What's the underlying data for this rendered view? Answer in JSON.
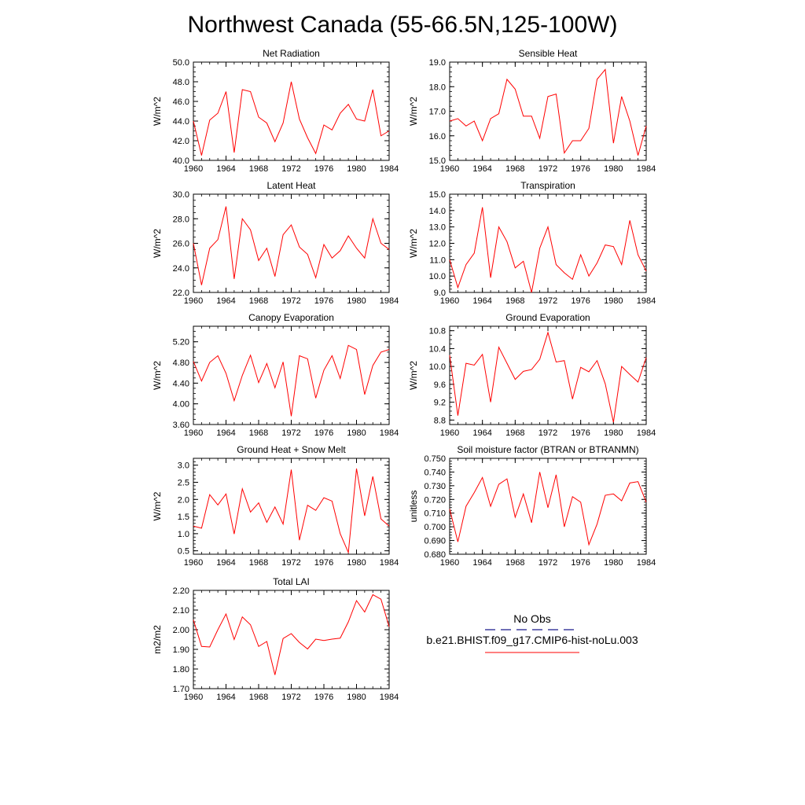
{
  "figure": {
    "title": "Northwest Canada (55-66.5N,125-100W)",
    "line_color": "#ff0000",
    "obs_color": "#1a1a8c"
  },
  "legend": {
    "items": [
      {
        "label": "No Obs",
        "style": "dashed",
        "color": "#1a1a8c"
      },
      {
        "label": "b.e21.BHIST.f09_g17.CMIP6-hist-noLu.003",
        "style": "solid",
        "color": "#ff0000"
      }
    ]
  },
  "chart_data": [
    {
      "type": "line",
      "title": "Net Radiation",
      "ylabel": "W/m^2",
      "xlim": [
        1960,
        1984
      ],
      "ylim": [
        40.0,
        50.0
      ],
      "xticks": [
        "1960",
        "1964",
        "1968",
        "1972",
        "1976",
        "1980",
        "1984"
      ],
      "yticks": [
        "40.0",
        "42.0",
        "44.0",
        "46.0",
        "48.0",
        "50.0"
      ],
      "y_minor": 0.5,
      "x": [
        1960,
        1961,
        1962,
        1963,
        1964,
        1965,
        1966,
        1967,
        1968,
        1969,
        1970,
        1971,
        1972,
        1973,
        1974,
        1975,
        1976,
        1977,
        1978,
        1979,
        1980,
        1981,
        1982,
        1983,
        1984
      ],
      "series": [
        {
          "values": [
            44.0,
            40.5,
            44.1,
            44.8,
            47.0,
            40.8,
            47.2,
            47.0,
            44.4,
            43.8,
            41.9,
            43.8,
            48.0,
            44.2,
            42.3,
            40.7,
            43.6,
            43.1,
            44.8,
            45.7,
            44.2,
            44.0,
            47.2,
            42.5,
            43.0
          ]
        }
      ]
    },
    {
      "type": "line",
      "title": "Sensible Heat",
      "ylabel": "W/m^2",
      "xlim": [
        1960,
        1984
      ],
      "ylim": [
        15.0,
        19.0
      ],
      "xticks": [
        "1960",
        "1964",
        "1968",
        "1972",
        "1976",
        "1980",
        "1984"
      ],
      "yticks": [
        "15.0",
        "16.0",
        "17.0",
        "18.0",
        "19.0"
      ],
      "y_minor": 0.2,
      "x": [
        1960,
        1961,
        1962,
        1963,
        1964,
        1965,
        1966,
        1967,
        1968,
        1969,
        1970,
        1971,
        1972,
        1973,
        1974,
        1975,
        1976,
        1977,
        1978,
        1979,
        1980,
        1981,
        1982,
        1983,
        1984
      ],
      "series": [
        {
          "values": [
            16.6,
            16.7,
            16.4,
            16.6,
            15.8,
            16.7,
            16.9,
            18.3,
            17.9,
            16.8,
            16.8,
            15.9,
            17.6,
            17.7,
            15.3,
            15.8,
            15.8,
            16.3,
            18.3,
            18.7,
            15.7,
            17.6,
            16.6,
            15.2,
            16.4
          ]
        }
      ]
    },
    {
      "type": "line",
      "title": "Latent Heat",
      "ylabel": "W/m^2",
      "xlim": [
        1960,
        1984
      ],
      "ylim": [
        22.0,
        30.0
      ],
      "xticks": [
        "1960",
        "1964",
        "1968",
        "1972",
        "1976",
        "1980",
        "1984"
      ],
      "yticks": [
        "22.0",
        "24.0",
        "26.0",
        "28.0",
        "30.0"
      ],
      "y_minor": 0.5,
      "x": [
        1960,
        1961,
        1962,
        1963,
        1964,
        1965,
        1966,
        1967,
        1968,
        1969,
        1970,
        1971,
        1972,
        1973,
        1974,
        1975,
        1976,
        1977,
        1978,
        1979,
        1980,
        1981,
        1982,
        1983,
        1984
      ],
      "series": [
        {
          "values": [
            26.0,
            22.6,
            25.6,
            26.3,
            29.0,
            23.1,
            28.0,
            27.1,
            24.6,
            25.6,
            23.3,
            26.7,
            27.5,
            25.7,
            25.1,
            23.2,
            25.9,
            24.8,
            25.4,
            26.6,
            25.6,
            24.8,
            28.0,
            26.0,
            25.5
          ]
        }
      ]
    },
    {
      "type": "line",
      "title": "Transpiration",
      "ylabel": "W/m^2",
      "xlim": [
        1960,
        1984
      ],
      "ylim": [
        9.0,
        15.0
      ],
      "xticks": [
        "1960",
        "1964",
        "1968",
        "1972",
        "1976",
        "1980",
        "1984"
      ],
      "yticks": [
        "9.0",
        "10.0",
        "11.0",
        "12.0",
        "13.0",
        "14.0",
        "15.0"
      ],
      "y_minor": 0.2,
      "x": [
        1960,
        1961,
        1962,
        1963,
        1964,
        1965,
        1966,
        1967,
        1968,
        1969,
        1970,
        1971,
        1972,
        1973,
        1974,
        1975,
        1976,
        1977,
        1978,
        1979,
        1980,
        1981,
        1982,
        1983,
        1984
      ],
      "series": [
        {
          "values": [
            11.0,
            9.3,
            10.7,
            11.4,
            14.2,
            9.9,
            13.0,
            12.1,
            10.5,
            10.9,
            9.0,
            11.7,
            13.0,
            10.7,
            10.2,
            9.8,
            11.3,
            10.0,
            10.8,
            11.9,
            11.8,
            10.7,
            13.4,
            11.3,
            10.3
          ]
        }
      ]
    },
    {
      "type": "line",
      "title": "Canopy Evaporation",
      "ylabel": "W/m^2",
      "xlim": [
        1960,
        1984
      ],
      "ylim": [
        3.6,
        5.5
      ],
      "xticks": [
        "1960",
        "1964",
        "1968",
        "1972",
        "1976",
        "1980",
        "1984"
      ],
      "yticks": [
        "3.60",
        "4.00",
        "4.40",
        "4.80",
        "5.20"
      ],
      "y_minor": 0.1,
      "x": [
        1960,
        1961,
        1962,
        1963,
        1964,
        1965,
        1966,
        1967,
        1968,
        1969,
        1970,
        1971,
        1972,
        1973,
        1974,
        1975,
        1976,
        1977,
        1978,
        1979,
        1980,
        1981,
        1982,
        1983,
        1984
      ],
      "series": [
        {
          "values": [
            4.82,
            4.44,
            4.8,
            4.93,
            4.59,
            4.06,
            4.55,
            4.94,
            4.41,
            4.78,
            4.31,
            4.81,
            3.76,
            4.93,
            4.87,
            4.11,
            4.65,
            4.93,
            4.49,
            5.13,
            5.05,
            4.18,
            4.74,
            5.0,
            5.05
          ]
        }
      ]
    },
    {
      "type": "line",
      "title": "Ground Evaporation",
      "ylabel": "W/m^2",
      "xlim": [
        1960,
        1984
      ],
      "ylim": [
        8.7,
        10.9
      ],
      "xticks": [
        "1960",
        "1964",
        "1968",
        "1972",
        "1976",
        "1980",
        "1984"
      ],
      "yticks": [
        "8.8",
        "9.2",
        "9.6",
        "10.0",
        "10.4",
        "10.8"
      ],
      "y_minor": 0.1,
      "x": [
        1960,
        1961,
        1962,
        1963,
        1964,
        1965,
        1966,
        1967,
        1968,
        1969,
        1970,
        1971,
        1972,
        1973,
        1974,
        1975,
        1976,
        1977,
        1978,
        1979,
        1980,
        1981,
        1982,
        1983,
        1984
      ],
      "series": [
        {
          "values": [
            10.25,
            8.9,
            10.07,
            10.03,
            10.27,
            9.2,
            10.43,
            10.07,
            9.71,
            9.89,
            9.93,
            10.16,
            10.76,
            10.1,
            10.13,
            9.27,
            9.98,
            9.88,
            10.13,
            9.61,
            8.75,
            10.0,
            9.82,
            9.65,
            10.2
          ]
        }
      ]
    },
    {
      "type": "line",
      "title": "Ground Heat + Snow Melt",
      "ylabel": "W/m^2",
      "xlim": [
        1960,
        1984
      ],
      "ylim": [
        0.4,
        3.2
      ],
      "xticks": [
        "1960",
        "1964",
        "1968",
        "1972",
        "1976",
        "1980",
        "1984"
      ],
      "yticks": [
        "0.5",
        "1.0",
        "1.5",
        "2.0",
        "2.5",
        "3.0"
      ],
      "y_minor": 0.1,
      "x": [
        1960,
        1961,
        1962,
        1963,
        1964,
        1965,
        1966,
        1967,
        1968,
        1969,
        1970,
        1971,
        1972,
        1973,
        1974,
        1975,
        1976,
        1977,
        1978,
        1979,
        1980,
        1981,
        1982,
        1983,
        1984
      ],
      "series": [
        {
          "values": [
            1.22,
            1.16,
            2.14,
            1.84,
            2.16,
            0.99,
            2.31,
            1.63,
            1.9,
            1.33,
            1.78,
            1.28,
            2.87,
            0.81,
            1.83,
            1.68,
            2.05,
            1.95,
            1.0,
            0.45,
            2.9,
            1.52,
            2.67,
            1.43,
            1.22
          ]
        }
      ]
    },
    {
      "type": "line",
      "title": "Soil moisture factor (BTRAN or BTRANMN)",
      "ylabel": "unitless",
      "xlim": [
        1960,
        1984
      ],
      "ylim": [
        0.68,
        0.75
      ],
      "xticks": [
        "1960",
        "1964",
        "1968",
        "1972",
        "1976",
        "1980",
        "1984"
      ],
      "yticks": [
        "0.680",
        "0.690",
        "0.700",
        "0.710",
        "0.720",
        "0.730",
        "0.740",
        "0.750"
      ],
      "y_minor": 0.002,
      "x": [
        1960,
        1961,
        1962,
        1963,
        1964,
        1965,
        1966,
        1967,
        1968,
        1969,
        1970,
        1971,
        1972,
        1973,
        1974,
        1975,
        1976,
        1977,
        1978,
        1979,
        1980,
        1981,
        1982,
        1983,
        1984
      ],
      "series": [
        {
          "values": [
            0.713,
            0.689,
            0.715,
            0.725,
            0.736,
            0.715,
            0.731,
            0.735,
            0.707,
            0.724,
            0.703,
            0.74,
            0.714,
            0.738,
            0.7,
            0.722,
            0.718,
            0.687,
            0.702,
            0.723,
            0.724,
            0.719,
            0.732,
            0.733,
            0.718
          ]
        }
      ]
    },
    {
      "type": "line",
      "title": "Total LAI",
      "ylabel": "m2/m2",
      "xlim": [
        1960,
        1984
      ],
      "ylim": [
        1.7,
        2.2
      ],
      "xticks": [
        "1960",
        "1964",
        "1968",
        "1972",
        "1976",
        "1980",
        "1984"
      ],
      "yticks": [
        "1.70",
        "1.80",
        "1.90",
        "2.00",
        "2.10",
        "2.20"
      ],
      "y_minor": 0.02,
      "x": [
        1960,
        1961,
        1962,
        1963,
        1964,
        1965,
        1966,
        1967,
        1968,
        1969,
        1970,
        1971,
        1972,
        1973,
        1974,
        1975,
        1976,
        1977,
        1978,
        1979,
        1980,
        1981,
        1982,
        1983,
        1984
      ],
      "series": [
        {
          "values": [
            2.05,
            1.915,
            1.912,
            2.0,
            2.08,
            1.95,
            2.065,
            2.025,
            1.915,
            1.94,
            1.77,
            1.955,
            1.98,
            1.935,
            1.902,
            1.952,
            1.945,
            1.952,
            1.957,
            2.04,
            2.148,
            2.09,
            2.178,
            2.155,
            2.015
          ]
        }
      ]
    }
  ]
}
